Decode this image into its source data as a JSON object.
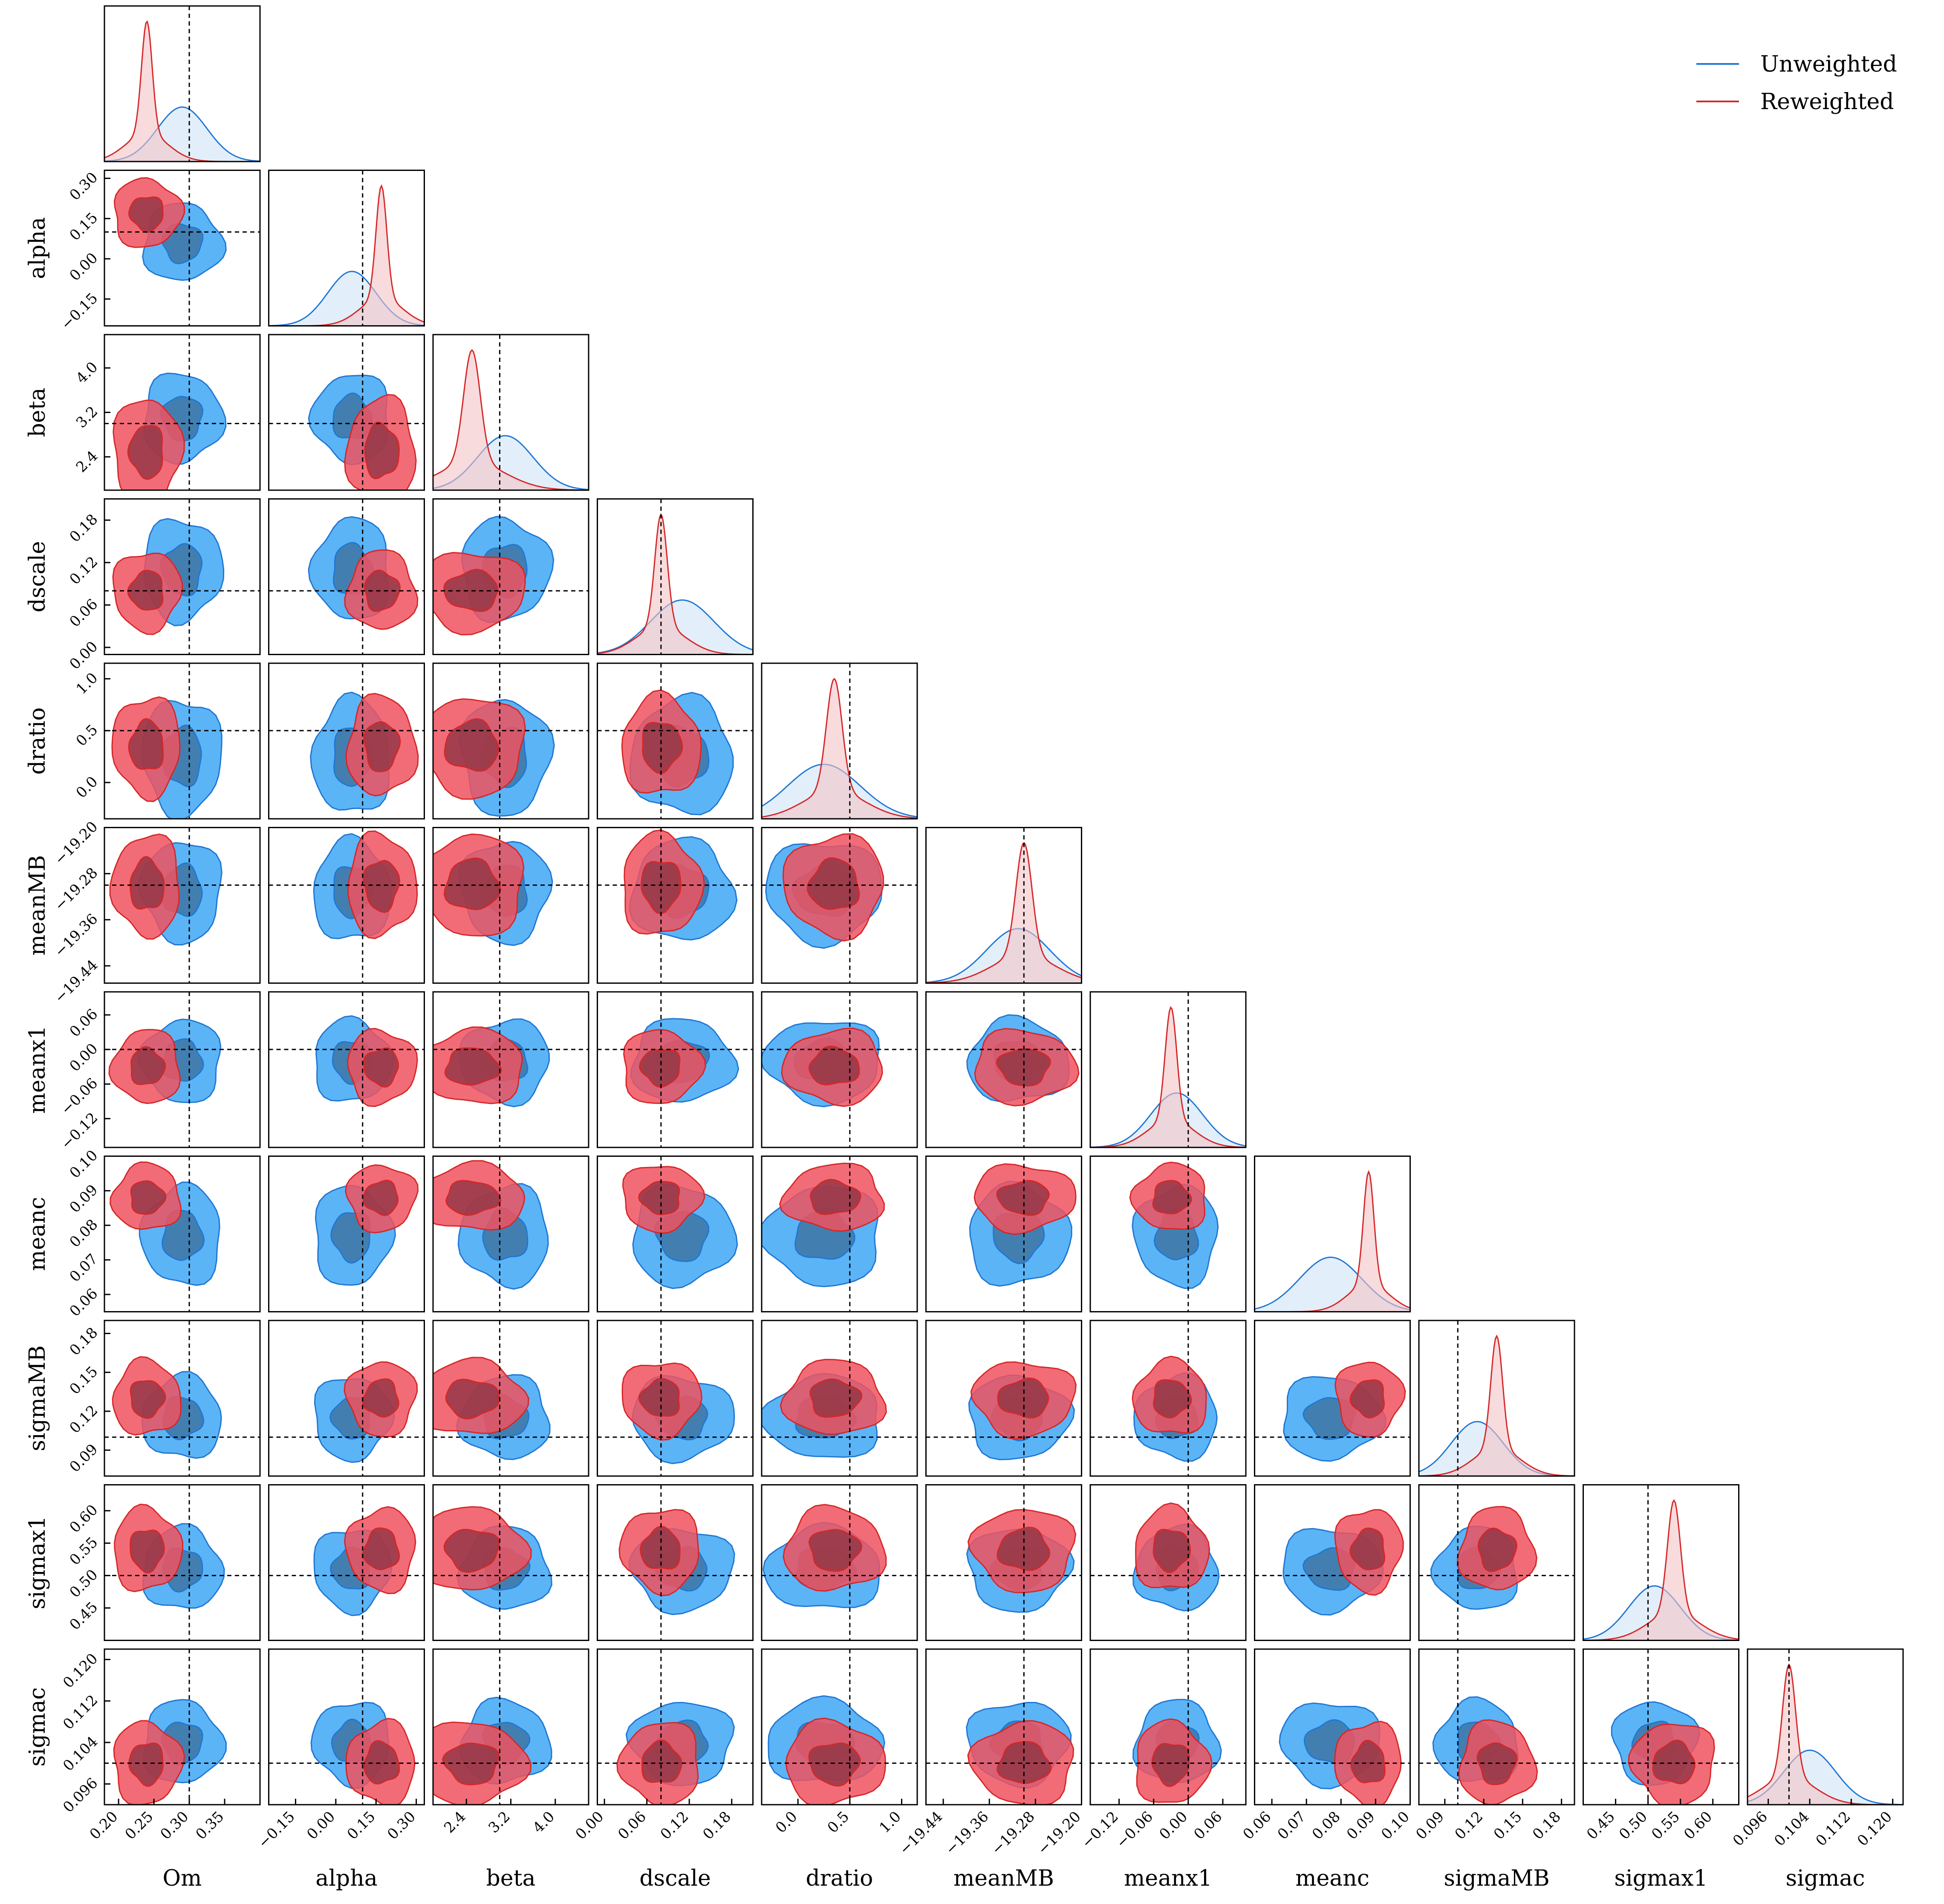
{
  "chart_data": {
    "type": "scatter",
    "subtype": "corner plot (2D contour and 1D marginal grid)",
    "parameters": [
      "Om",
      "alpha",
      "beta",
      "dscale",
      "dratio",
      "meanMB",
      "meanx1",
      "meanc",
      "sigmaMB",
      "sigmax1",
      "sigmac"
    ],
    "ranges": {
      "Om": [
        0.18,
        0.4
      ],
      "alpha": [
        -0.25,
        0.33
      ],
      "beta": [
        1.8,
        4.6
      ],
      "dscale": [
        -0.01,
        0.21
      ],
      "dratio": [
        -0.35,
        1.15
      ],
      "meanMB": [
        -19.47,
        -19.2
      ],
      "meanx1": [
        -0.17,
        0.1
      ],
      "meanc": [
        0.055,
        0.1
      ],
      "sigmaMB": [
        0.07,
        0.19
      ],
      "sigmax1": [
        0.4,
        0.64
      ],
      "sigmac": [
        0.092,
        0.122
      ]
    },
    "ticks": {
      "Om": {
        "values": [
          0.2,
          0.25,
          0.3,
          0.35
        ],
        "labels": [
          "0.20",
          "0.25",
          "0.30",
          "0.35"
        ]
      },
      "alpha": {
        "values": [
          -0.15,
          0.0,
          0.15,
          0.3
        ],
        "labels": [
          "−0.15",
          "0.00",
          "0.15",
          "0.30"
        ]
      },
      "beta": {
        "values": [
          2.4,
          3.2,
          4.0
        ],
        "labels": [
          "2.4",
          "3.2",
          "4.0"
        ]
      },
      "dscale": {
        "values": [
          0.0,
          0.06,
          0.12,
          0.18
        ],
        "labels": [
          "0.00",
          "0.06",
          "0.12",
          "0.18"
        ]
      },
      "dratio": {
        "values": [
          0.0,
          0.5,
          1.0
        ],
        "labels": [
          "0.0",
          "0.5",
          "1.0"
        ]
      },
      "meanMB": {
        "values": [
          -19.44,
          -19.36,
          -19.28,
          -19.2
        ],
        "labels": [
          "−19.44",
          "−19.36",
          "−19.28",
          "−19.20"
        ]
      },
      "meanx1": {
        "values": [
          -0.12,
          -0.06,
          0.0,
          0.06
        ],
        "labels": [
          "−0.12",
          "−0.06",
          "0.00",
          "0.06"
        ]
      },
      "meanc": {
        "values": [
          0.06,
          0.07,
          0.08,
          0.09,
          0.1
        ],
        "labels": [
          "0.06",
          "0.07",
          "0.08",
          "0.09",
          "0.10"
        ]
      },
      "sigmaMB": {
        "values": [
          0.09,
          0.12,
          0.15,
          0.18
        ],
        "labels": [
          "0.09",
          "0.12",
          "0.15",
          "0.18"
        ]
      },
      "sigmax1": {
        "values": [
          0.45,
          0.5,
          0.55,
          0.6
        ],
        "labels": [
          "0.45",
          "0.50",
          "0.55",
          "0.60"
        ]
      },
      "sigmac": {
        "values": [
          0.096,
          0.104,
          0.112,
          0.12
        ],
        "labels": [
          "0.096",
          "0.104",
          "0.112",
          "0.120"
        ]
      }
    },
    "truth": {
      "Om": 0.3,
      "alpha": 0.1,
      "beta": 3.0,
      "dscale": 0.08,
      "dratio": 0.5,
      "meanMB": -19.3,
      "meanx1": 0.0,
      "meanc": 0.1,
      "sigmaMB": 0.1,
      "sigmax1": 0.5,
      "sigmac": 0.1
    },
    "series": [
      {
        "name": "Unweighted",
        "color": "#1f77d4",
        "fill_outer": "#5bb4f6",
        "fill_inner": "#3f79a8",
        "peaks": {
          "Om": 0.29,
          "alpha": 0.06,
          "beta": 3.1,
          "dscale": 0.11,
          "dratio": 0.25,
          "meanMB": -19.31,
          "meanx1": -0.02,
          "meanc": 0.077,
          "sigmaMB": 0.115,
          "sigmax1": 0.51,
          "sigmac": 0.104
        },
        "widths": {
          "Om": 0.035,
          "alpha": 0.09,
          "beta": 0.5,
          "dscale": 0.045,
          "dratio": 0.35,
          "meanMB": 0.055,
          "meanx1": 0.045,
          "meanc": 0.009,
          "sigmaMB": 0.02,
          "sigmax1": 0.04,
          "sigmac": 0.005
        }
      },
      {
        "name": "Reweighted",
        "color": "#d62728",
        "fill_outer": "#f0525f",
        "fill_inner": "#8e3444",
        "peaks": {
          "Om": 0.24,
          "alpha": 0.17,
          "beta": 2.5,
          "dscale": 0.08,
          "dratio": 0.35,
          "meanMB": -19.3,
          "meanx1": -0.03,
          "meanc": 0.088,
          "sigmaMB": 0.13,
          "sigmax1": 0.54,
          "sigmac": 0.1
        },
        "widths": {
          "Om": 0.03,
          "alpha": 0.08,
          "beta": 0.6,
          "dscale": 0.035,
          "dratio": 0.3,
          "meanMB": 0.055,
          "meanx1": 0.04,
          "meanc": 0.006,
          "sigmaMB": 0.018,
          "sigmax1": 0.04,
          "sigmac": 0.005
        }
      }
    ],
    "legend": {
      "position": "top-right",
      "entries": [
        "Unweighted",
        "Reweighted"
      ]
    },
    "grid": false
  }
}
